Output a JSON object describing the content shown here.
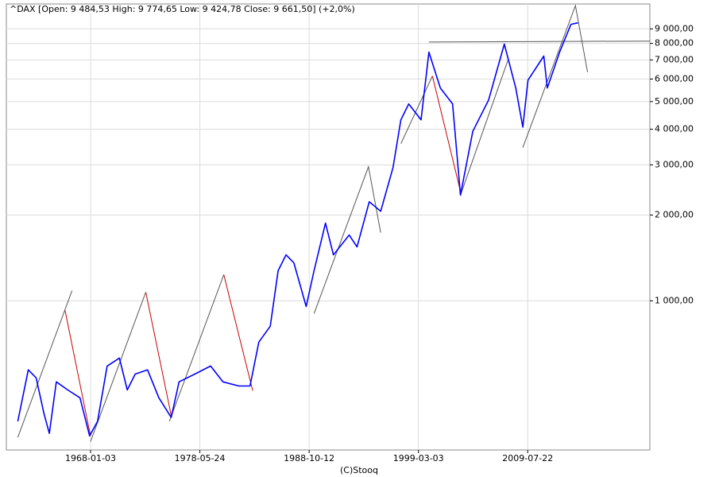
{
  "chart_data": {
    "type": "line",
    "title": "^DAX [Open: 9 484,53  High: 9 774,65  Low: 9 424,78  Close: 9 661,50] (+2,0%)",
    "footer": "(C)Stooq",
    "log_y": true,
    "grid": true,
    "xlim": [
      "1960-01-01",
      "2021-03-01"
    ],
    "xticks": [
      "1968-01-03",
      "1978-05-24",
      "1988-10-12",
      "1999-03-03",
      "2009-07-22"
    ],
    "ylim": [
      300,
      11000
    ],
    "yticks": [
      {
        "value": 1000,
        "label": "1 000,00"
      },
      {
        "value": 2000,
        "label": "2 000,00"
      },
      {
        "value": 3000,
        "label": "3 000,00"
      },
      {
        "value": 4000,
        "label": "4 000,00"
      },
      {
        "value": 5000,
        "label": "5 000,00"
      },
      {
        "value": 6000,
        "label": "6 000,00"
      },
      {
        "value": 7000,
        "label": "7 000,00"
      },
      {
        "value": 8000,
        "label": "8 000,00"
      },
      {
        "value": 9000,
        "label": "9 000,00"
      }
    ],
    "series": [
      {
        "color": "#0000ff",
        "x": [
          "1961-02-01",
          "1962-02-01",
          "1962-11-01",
          "1963-08-01",
          "1964-02-01",
          "1964-10-01",
          "1965-11-01",
          "1967-01-01",
          "1967-12-01",
          "1968-09-01",
          "1969-08-01",
          "1970-10-01",
          "1971-07-01",
          "1972-04-01",
          "1973-06-01",
          "1974-07-01",
          "1975-09-01",
          "1976-06-01",
          "1977-12-01",
          "1979-06-01",
          "1980-08-01",
          "1982-02-01",
          "1983-03-01",
          "1984-01-01",
          "1985-02-01",
          "1985-11-01",
          "1986-08-01",
          "1987-05-01",
          "1988-07-01",
          "1989-04-01",
          "1990-05-01",
          "1991-02-01",
          "1992-08-01",
          "1993-05-01",
          "1994-07-01",
          "1995-08-01",
          "1996-10-01",
          "1997-07-01",
          "1998-04-01",
          "1999-06-01",
          "2000-03-01",
          "2001-04-01",
          "2002-06-01",
          "2003-03-01",
          "2004-05-01",
          "2005-11-01",
          "2007-05-01",
          "2008-06-01",
          "2009-02-01",
          "2009-08-01",
          "2011-02-01",
          "2011-06-01",
          "2012-08-01",
          "2013-09-01",
          "2014-05-01"
        ],
        "values": [
          378,
          573,
          537,
          402,
          343,
          520,
          487,
          457,
          336,
          378,
          591,
          630,
          487,
          554,
          573,
          457,
          390,
          520,
          554,
          591,
          520,
          503,
          503,
          717,
          815,
          1276,
          1450,
          1360,
          956,
          1276,
          1874,
          1450,
          1702,
          1546,
          2226,
          2063,
          2935,
          4317,
          4909,
          4317,
          7455,
          5580,
          4909,
          2350,
          3929,
          5066,
          7955,
          5580,
          4070,
          5946,
          7222,
          5580,
          7455,
          9333,
          9450
        ]
      }
    ],
    "trend_lines": [
      {
        "color": "#555555",
        "x": [
          "1961-02-01",
          "1966-04-01"
        ],
        "values": [
          332,
          1087
        ]
      },
      {
        "color": "#cc0000",
        "x": [
          "1965-08-01",
          "1968-01-01"
        ],
        "values": [
          926,
          336
        ]
      },
      {
        "color": "#555555",
        "x": [
          "1968-01-01",
          "1973-04-01"
        ],
        "values": [
          321,
          1073
        ]
      },
      {
        "color": "#cc0000",
        "x": [
          "1973-04-01",
          "1975-09-01"
        ],
        "values": [
          1073,
          397
        ]
      },
      {
        "color": "#555555",
        "x": [
          "1975-07-01",
          "1980-09-01"
        ],
        "values": [
          378,
          1236
        ]
      },
      {
        "color": "#cc0000",
        "x": [
          "1980-09-01",
          "1983-06-01"
        ],
        "values": [
          1236,
          484
        ]
      },
      {
        "color": "#555555",
        "x": [
          "1989-04-01",
          "1994-06-01",
          "1995-08-01"
        ],
        "values": [
          903,
          2953,
          1736
        ]
      },
      {
        "color": "#555555",
        "x": [
          "1997-07-01",
          "2000-07-01"
        ],
        "values": [
          3561,
          6148
        ]
      },
      {
        "color": "#cc0000",
        "x": [
          "2000-07-01",
          "2003-03-01"
        ],
        "values": [
          6148,
          2423
        ]
      },
      {
        "color": "#555555",
        "x": [
          "2003-03-01",
          "2007-09-01"
        ],
        "values": [
          2350,
          6966
        ]
      },
      {
        "color": "#555555",
        "x": [
          "2000-03-01",
          "2021-03-01"
        ],
        "values": [
          8087,
          8150
        ]
      },
      {
        "color": "#555555",
        "x": [
          "2009-02-01",
          "2014-02-01",
          "2015-04-01"
        ],
        "values": [
          3450,
          10860,
          6342
        ]
      }
    ]
  }
}
